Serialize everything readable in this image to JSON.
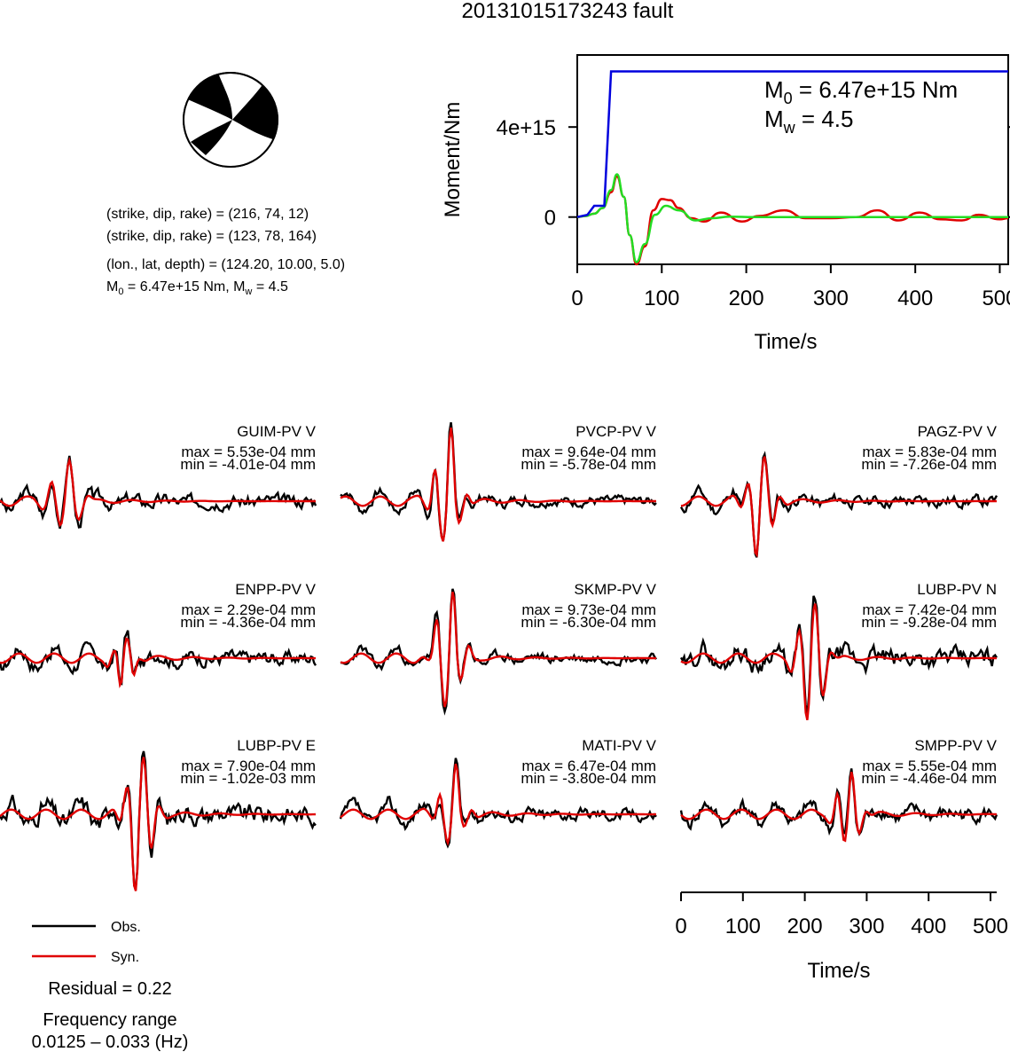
{
  "title": "20131015173243 fault",
  "focal_mechanism": {
    "plane1": "(strike, dip, rake) = (216, 74, 12)",
    "plane2": "(strike, dip, rake) = (123, 78, 164)",
    "location": "(lon., lat, depth) = (124.20, 10.00, 5.0)",
    "moment_text": "M0 = 6.47e+15 Nm, Mw = 4.5",
    "m0_value": "6.47e+15 Nm",
    "mw_value": "4.5"
  },
  "moment_plot": {
    "annotation_m0": "6.47e+15 Nm",
    "annotation_mw": "4.5"
  },
  "legend": {
    "obs_label": "Obs.",
    "syn_label": "Syn.",
    "residual": "Residual = 0.22",
    "freq_title": "Frequency range",
    "freq_value": "0.0125 – 0.033 (Hz)"
  },
  "colors": {
    "observed": "#000000",
    "synthetic": "#e00000",
    "cumulative_moment": "#0000dd",
    "moment_rate_alt": "#22dd22"
  },
  "chart_data": [
    {
      "type": "line",
      "xlabel": "Time/s",
      "ylabel": "Moment/Nm",
      "xlim": [
        0,
        510
      ],
      "ylim": [
        -2100000000000000.0,
        7200000000000000.0
      ],
      "xticks": [
        0,
        100,
        200,
        300,
        400,
        500
      ],
      "yticks": [
        {
          "value": 0,
          "label": "0"
        },
        {
          "value": 4000000000000000.0,
          "label": "4e+15"
        }
      ],
      "series": [
        {
          "color": "#0000dd",
          "x": [
            0,
            12,
            20,
            32,
            40,
            510
          ],
          "y": [
            0,
            100000000000000.0,
            500000000000000.0,
            500000000000000.0,
            6470000000000000.0,
            6470000000000000.0
          ]
        },
        {
          "color": "#22dd22",
          "x": [
            0,
            10,
            20,
            30,
            40,
            47,
            55,
            62,
            70,
            80,
            92,
            105,
            120,
            140,
            160,
            180,
            210,
            250,
            510
          ],
          "y": [
            0,
            50000000000000.0,
            150000000000000.0,
            400000000000000.0,
            1200000000000000.0,
            1900000000000000.0,
            900000000000000.0,
            -800000000000000.0,
            -2000000000000000.0,
            -1200000000000000.0,
            100000000000000.0,
            500000000000000.0,
            300000000000000.0,
            -150000000000000.0,
            -50000000000000.0,
            20000000000000.0,
            0,
            0,
            0
          ]
        },
        {
          "color": "#e00000",
          "x": [
            0,
            10,
            20,
            30,
            40,
            47,
            55,
            62,
            70,
            80,
            90,
            100,
            110,
            120,
            135,
            150,
            170,
            195,
            215,
            245,
            270,
            300,
            330,
            355,
            380,
            405,
            430,
            455,
            475,
            500,
            510
          ],
          "y": [
            0,
            50000000000000.0,
            150000000000000.0,
            400000000000000.0,
            1100000000000000.0,
            1800000000000000.0,
            900000000000000.0,
            -800000000000000.0,
            -2100000000000000.0,
            -1300000000000000.0,
            300000000000000.0,
            800000000000000.0,
            750000000000000.0,
            400000000000000.0,
            -50000000000000.0,
            -200000000000000.0,
            200000000000000.0,
            -200000000000000.0,
            50000000000000.0,
            300000000000000.0,
            -50000000000000.0,
            -50000000000000.0,
            0,
            300000000000000.0,
            -150000000000000.0,
            200000000000000.0,
            -100000000000000.0,
            -150000000000000.0,
            100000000000000.0,
            -100000000000000.0,
            -50000000000000.0
          ]
        }
      ]
    },
    {
      "type": "line",
      "xlabel": "Time/s",
      "xlim": [
        0,
        510
      ],
      "xticks": [
        0,
        100,
        200,
        300,
        400,
        500
      ],
      "waveforms": [
        {
          "station": "GUIM-PV V",
          "max": "max = 5.53e-04 mm",
          "min": "min = -4.01e-04 mm",
          "obs_peak": 0.553,
          "obs_trough": -0.401,
          "onset": 105,
          "period": 25,
          "noise": 0.08,
          "seed": 3
        },
        {
          "station": "PVCP-PV V",
          "max": "max = 9.64e-04 mm",
          "min": "min = -5.78e-04 mm",
          "obs_peak": 0.964,
          "obs_trough": -0.578,
          "onset": 172,
          "period": 22,
          "noise": 0.06,
          "seed": 7
        },
        {
          "station": "PAGZ-PV V",
          "max": "max = 5.83e-04 mm",
          "min": "min = -7.26e-04 mm",
          "obs_peak": 0.583,
          "obs_trough": -0.726,
          "onset": 128,
          "period": 22,
          "noise": 0.07,
          "seed": 11
        },
        {
          "station": "ENPP-PV V",
          "max": "max = 2.29e-04 mm",
          "min": "min = -4.36e-04 mm",
          "obs_peak": 0.229,
          "obs_trough": -0.436,
          "onset": 200,
          "period": 18,
          "noise": 0.09,
          "seed": 17
        },
        {
          "station": "SKMP-PV V",
          "max": "max = 9.73e-04 mm",
          "min": "min = -6.30e-04 mm",
          "obs_peak": 0.973,
          "obs_trough": -0.63,
          "onset": 175,
          "period": 22,
          "noise": 0.06,
          "seed": 23
        },
        {
          "station": "LUBP-PV N",
          "max": "max = 7.42e-04 mm",
          "min": "min = -9.28e-04 mm",
          "obs_peak": 0.742,
          "obs_trough": -0.928,
          "onset": 210,
          "period": 22,
          "noise": 0.12,
          "seed": 29
        },
        {
          "station": "LUBP-PV E",
          "max": "max = 7.90e-04 mm",
          "min": "min = -1.02e-03 mm",
          "obs_peak": 0.79,
          "obs_trough": -1.02,
          "onset": 225,
          "period": 22,
          "noise": 0.12,
          "seed": 31
        },
        {
          "station": "MATI-PV V",
          "max": "max = 6.47e-04 mm",
          "min": "min = -3.80e-04 mm",
          "obs_peak": 0.647,
          "obs_trough": -0.38,
          "onset": 180,
          "period": 22,
          "noise": 0.08,
          "seed": 37
        },
        {
          "station": "SMPP-PV V",
          "max": "max = 5.55e-04 mm",
          "min": "min = -4.46e-04 mm",
          "obs_peak": 0.555,
          "obs_trough": -0.446,
          "onset": 270,
          "period": 20,
          "noise": 0.09,
          "seed": 41
        }
      ]
    }
  ]
}
